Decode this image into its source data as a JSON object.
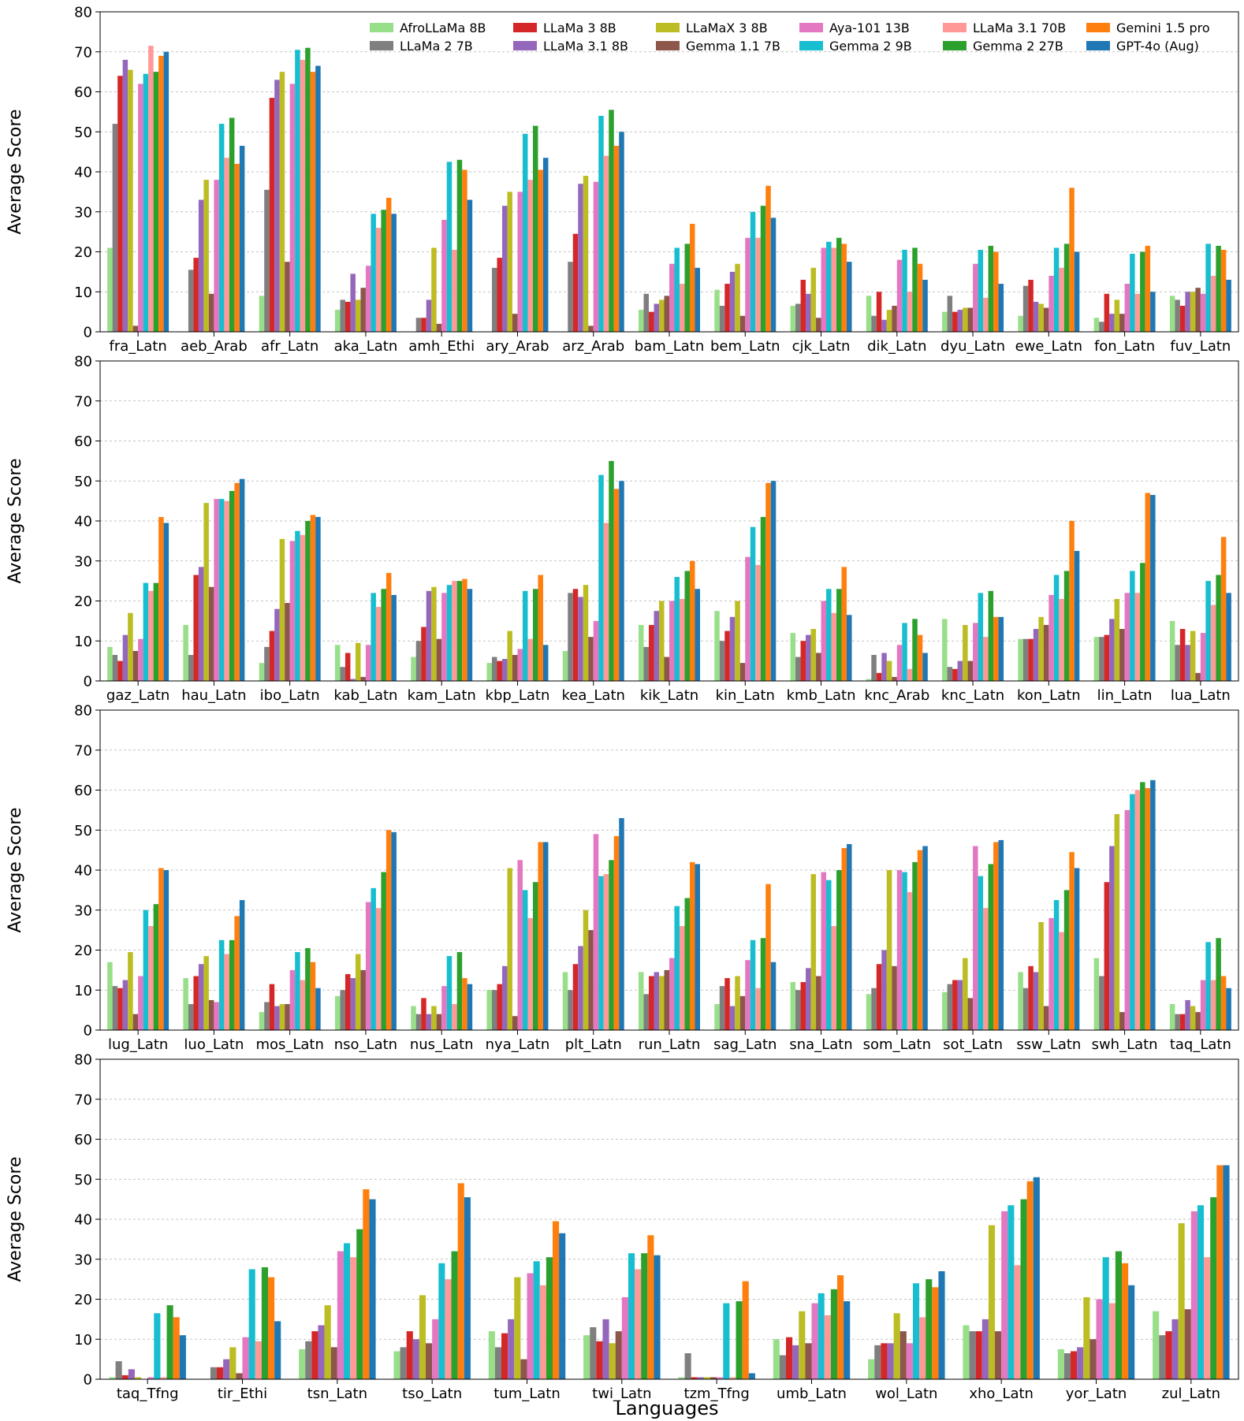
{
  "figure": {
    "xlabel": "Languages"
  },
  "colors": [
    "#98df8a",
    "#7f7f7f",
    "#d62728",
    "#9467bd",
    "#bcbd22",
    "#8c564b",
    "#e377c2",
    "#17becf",
    "#ff9896",
    "#2ca02c",
    "#ff7f0e",
    "#1f77b4"
  ],
  "chart_data": [
    {
      "type": "bar",
      "ylabel": "Average Score",
      "ylim": [
        0,
        80
      ],
      "yticks": [
        0,
        10,
        20,
        30,
        40,
        50,
        60,
        70,
        80
      ],
      "grid": "y-dashed",
      "legend": {
        "placement": "top-right",
        "entries": [
          "AfroLLaMa 8B",
          "LLaMa 2 7B",
          "LLaMa 3 8B",
          "LLaMa 3.1 8B",
          "LLaMaX 3 8B",
          "Gemma 1.1 7B",
          "Aya-101 13B",
          "Gemma 2 9B",
          "LLaMa 3.1 70B",
          "Gemma 2 27B",
          "Gemini 1.5 pro",
          "GPT-4o (Aug)"
        ]
      },
      "categories": [
        "fra_Latn",
        "aeb_Arab",
        "afr_Latn",
        "aka_Latn",
        "amh_Ethi",
        "ary_Arab",
        "arz_Arab",
        "bam_Latn",
        "bem_Latn",
        "cjk_Latn",
        "dik_Latn",
        "dyu_Latn",
        "ewe_Latn",
        "fon_Latn",
        "fuv_Latn"
      ],
      "series": [
        {
          "name": "AfroLLaMa 8B",
          "values": [
            21,
            0,
            9,
            5.5,
            0,
            0,
            0,
            5.5,
            10.5,
            6.5,
            9,
            5,
            4,
            3.5,
            9
          ]
        },
        {
          "name": "LLaMa 2 7B",
          "values": [
            52,
            15.5,
            35.5,
            8,
            3.5,
            16,
            17.5,
            9.5,
            6.5,
            7,
            4,
            9,
            11.5,
            2.5,
            8
          ]
        },
        {
          "name": "LLaMa 3 8B",
          "values": [
            64,
            18.5,
            58.5,
            7.5,
            3.5,
            18.5,
            24.5,
            5,
            12,
            13,
            10,
            5,
            13,
            9.5,
            6.5
          ]
        },
        {
          "name": "LLaMa 3.1 8B",
          "values": [
            68,
            33,
            63,
            14.5,
            8,
            31.5,
            37,
            7,
            15,
            9.5,
            3,
            5.5,
            7.5,
            4.5,
            10
          ]
        },
        {
          "name": "LLaMaX 3 8B",
          "values": [
            65.5,
            38,
            65,
            8,
            21,
            35,
            39,
            8,
            17,
            16,
            5.5,
            6,
            7,
            8,
            10
          ]
        },
        {
          "name": "Gemma 1.1 7B",
          "values": [
            1.5,
            9.5,
            17.5,
            11,
            2,
            4.5,
            1.5,
            9,
            4,
            3.5,
            6.5,
            6,
            6,
            4.5,
            11
          ]
        },
        {
          "name": "Aya-101 13B",
          "values": [
            62,
            38,
            62,
            16.5,
            28,
            35,
            37.5,
            17,
            23.5,
            21,
            18,
            17,
            14,
            12,
            9.5
          ]
        },
        {
          "name": "Gemma 2 9B",
          "values": [
            64.5,
            52,
            70.5,
            29.5,
            42.5,
            49.5,
            54,
            21,
            30,
            22.5,
            20.5,
            20.5,
            21,
            19.5,
            22
          ]
        },
        {
          "name": "LLaMa 3.1 70B",
          "values": [
            71.5,
            43.5,
            68,
            26,
            20.5,
            38,
            44,
            12,
            23.5,
            21,
            10,
            8.5,
            16,
            9.5,
            14
          ]
        },
        {
          "name": "Gemma 2 27B",
          "values": [
            65,
            53.5,
            71,
            30.5,
            43,
            51.5,
            55.5,
            22,
            31.5,
            23.5,
            21,
            21.5,
            22,
            20,
            21.5
          ]
        },
        {
          "name": "Gemini 1.5 pro",
          "values": [
            69,
            42,
            65,
            33.5,
            40.5,
            40.5,
            46.5,
            27,
            36.5,
            22,
            17,
            20,
            36,
            21.5,
            20.5
          ]
        },
        {
          "name": "GPT-4o (Aug)",
          "values": [
            70,
            46.5,
            66.5,
            29.5,
            33,
            43.5,
            50,
            16,
            28.5,
            17.5,
            13,
            12,
            20,
            10,
            13
          ]
        }
      ]
    },
    {
      "type": "bar",
      "ylabel": "Average Score",
      "ylim": [
        0,
        80
      ],
      "yticks": [
        0,
        10,
        20,
        30,
        40,
        50,
        60,
        70,
        80
      ],
      "grid": "y-dashed",
      "categories": [
        "gaz_Latn",
        "hau_Latn",
        "ibo_Latn",
        "kab_Latn",
        "kam_Latn",
        "kbp_Latn",
        "kea_Latn",
        "kik_Latn",
        "kin_Latn",
        "kmb_Latn",
        "knc_Arab",
        "knc_Latn",
        "kon_Latn",
        "lin_Latn",
        "lua_Latn"
      ],
      "series": [
        {
          "name": "AfroLLaMa 8B",
          "values": [
            8.5,
            14,
            4.5,
            9,
            6,
            4.5,
            7.5,
            14,
            17.5,
            12,
            0.5,
            15.5,
            10.5,
            11,
            15
          ]
        },
        {
          "name": "LLaMa 2 7B",
          "values": [
            6.5,
            6.5,
            8.5,
            3.5,
            10,
            6,
            22,
            8.5,
            10,
            6,
            6.5,
            3.5,
            10.5,
            11,
            9
          ]
        },
        {
          "name": "LLaMa 3 8B",
          "values": [
            5,
            26.5,
            12.5,
            7,
            13.5,
            5,
            23,
            14,
            12.5,
            10,
            2,
            3,
            10.5,
            11.5,
            13
          ]
        },
        {
          "name": "LLaMa 3.1 8B",
          "values": [
            11.5,
            28.5,
            18,
            0.5,
            22.5,
            5.5,
            21,
            17.5,
            16,
            11.5,
            7,
            5,
            13,
            15.5,
            9
          ]
        },
        {
          "name": "LLaMaX 3 8B",
          "values": [
            17,
            44.5,
            35.5,
            9.5,
            23.5,
            12.5,
            24,
            20,
            20,
            13,
            5,
            14,
            16,
            20.5,
            12.5
          ]
        },
        {
          "name": "Gemma 1.1 7B",
          "values": [
            7.5,
            23.5,
            19.5,
            1,
            10.5,
            6.5,
            11,
            6,
            4.5,
            7,
            1,
            5,
            14,
            13,
            2
          ]
        },
        {
          "name": "Aya-101 13B",
          "values": [
            10.5,
            45.5,
            35,
            9,
            22,
            8,
            15,
            20,
            31,
            20,
            9,
            14.5,
            21.5,
            22,
            12
          ]
        },
        {
          "name": "Gemma 2 9B",
          "values": [
            24.5,
            45.5,
            37.5,
            22,
            24,
            22.5,
            51.5,
            26,
            38.5,
            23,
            14.5,
            22,
            26.5,
            27.5,
            25
          ]
        },
        {
          "name": "LLaMa 3.1 70B",
          "values": [
            22.5,
            45,
            36.5,
            18.5,
            25,
            10.5,
            39.5,
            20.5,
            29,
            17,
            3,
            11,
            20.5,
            22,
            19
          ]
        },
        {
          "name": "Gemma 2 27B",
          "values": [
            24.5,
            47.5,
            40,
            23,
            25,
            23,
            55,
            27.5,
            41,
            23,
            15.5,
            22.5,
            27.5,
            29.5,
            26.5
          ]
        },
        {
          "name": "Gemini 1.5 pro",
          "values": [
            41,
            49.5,
            41.5,
            27,
            25.5,
            26.5,
            48,
            30,
            49.5,
            28.5,
            11.5,
            16,
            40,
            47,
            36
          ]
        },
        {
          "name": "GPT-4o (Aug)",
          "values": [
            39.5,
            50.5,
            41,
            21.5,
            23,
            9,
            50,
            23,
            50,
            16.5,
            7,
            16,
            32.5,
            46.5,
            22
          ]
        }
      ]
    },
    {
      "type": "bar",
      "ylabel": "Average Score",
      "ylim": [
        0,
        80
      ],
      "yticks": [
        0,
        10,
        20,
        30,
        40,
        50,
        60,
        70,
        80
      ],
      "grid": "y-dashed",
      "categories": [
        "lug_Latn",
        "luo_Latn",
        "mos_Latn",
        "nso_Latn",
        "nus_Latn",
        "nya_Latn",
        "plt_Latn",
        "run_Latn",
        "sag_Latn",
        "sna_Latn",
        "som_Latn",
        "sot_Latn",
        "ssw_Latn",
        "swh_Latn",
        "taq_Latn"
      ],
      "series": [
        {
          "name": "AfroLLaMa 8B",
          "values": [
            17,
            13,
            4.5,
            8.5,
            6,
            10,
            14.5,
            14.5,
            6.5,
            12,
            9,
            9.5,
            14.5,
            18,
            6.5
          ]
        },
        {
          "name": "LLaMa 2 7B",
          "values": [
            11,
            6.5,
            7,
            10,
            4,
            10,
            10,
            9,
            11,
            10,
            10.5,
            11.5,
            10.5,
            13.5,
            4
          ]
        },
        {
          "name": "LLaMa 3 8B",
          "values": [
            10.5,
            13.5,
            11.5,
            14,
            8,
            11.5,
            16.5,
            13.5,
            13,
            12,
            16.5,
            12.5,
            16,
            37,
            4
          ]
        },
        {
          "name": "LLaMa 3.1 8B",
          "values": [
            12.5,
            16.5,
            6,
            13,
            4,
            16,
            21,
            14.5,
            6,
            15.5,
            20,
            12.5,
            14.5,
            46,
            7.5
          ]
        },
        {
          "name": "LLaMaX 3 8B",
          "values": [
            19.5,
            18.5,
            6.5,
            19,
            6,
            40.5,
            30,
            13.5,
            13.5,
            39,
            40,
            18,
            27,
            54,
            6
          ]
        },
        {
          "name": "Gemma 1.1 7B",
          "values": [
            4,
            7.5,
            6.5,
            15,
            4,
            3.5,
            25,
            15,
            8.5,
            13.5,
            16,
            8,
            6,
            4.5,
            4.5
          ]
        },
        {
          "name": "Aya-101 13B",
          "values": [
            13.5,
            7,
            15,
            32,
            11,
            42.5,
            49,
            18,
            17.5,
            39.5,
            40,
            46,
            28,
            55,
            12.5
          ]
        },
        {
          "name": "Gemma 2 9B",
          "values": [
            30,
            22.5,
            19.5,
            35.5,
            18.5,
            35,
            38.5,
            31,
            22.5,
            37.5,
            39.5,
            38.5,
            32.5,
            59,
            22
          ]
        },
        {
          "name": "LLaMa 3.1 70B",
          "values": [
            26,
            19,
            12.5,
            30.5,
            6.5,
            28,
            39,
            26,
            10.5,
            26,
            34.5,
            30.5,
            24.5,
            60,
            12.5
          ]
        },
        {
          "name": "Gemma 2 27B",
          "values": [
            31.5,
            22.5,
            20.5,
            39.5,
            19.5,
            37,
            42.5,
            33,
            23,
            40,
            42,
            41.5,
            35,
            62,
            23
          ]
        },
        {
          "name": "Gemini 1.5 pro",
          "values": [
            40.5,
            28.5,
            17,
            50,
            13,
            47,
            48.5,
            42,
            36.5,
            45.5,
            45,
            47,
            44.5,
            60.5,
            13.5
          ]
        },
        {
          "name": "GPT-4o (Aug)",
          "values": [
            40,
            32.5,
            10.5,
            49.5,
            11.5,
            47,
            53,
            41.5,
            17,
            46.5,
            46,
            47.5,
            40.5,
            62.5,
            10.5
          ]
        }
      ]
    },
    {
      "type": "bar",
      "ylabel": "Average Score",
      "xlabel": "Languages",
      "ylim": [
        0,
        80
      ],
      "yticks": [
        0,
        10,
        20,
        30,
        40,
        50,
        60,
        70,
        80
      ],
      "grid": "y-dashed",
      "categories": [
        "taq_Tfng",
        "tir_Ethi",
        "tsn_Latn",
        "tso_Latn",
        "tum_Latn",
        "twi_Latn",
        "tzm_Tfng",
        "umb_Latn",
        "wol_Latn",
        "xho_Latn",
        "yor_Latn",
        "zul_Latn"
      ],
      "series": [
        {
          "name": "AfroLLaMa 8B",
          "values": [
            0.5,
            0,
            7.5,
            7,
            12,
            11,
            0.5,
            10,
            5,
            13.5,
            7.5,
            17
          ]
        },
        {
          "name": "LLaMa 2 7B",
          "values": [
            4.5,
            3,
            9.5,
            8,
            8,
            13,
            6.5,
            6,
            8.5,
            12,
            6.5,
            11
          ]
        },
        {
          "name": "LLaMa 3 8B",
          "values": [
            1,
            3,
            12,
            12,
            11.5,
            9.5,
            0.5,
            10.5,
            9,
            12,
            7,
            12
          ]
        },
        {
          "name": "LLaMa 3.1 8B",
          "values": [
            2.5,
            5,
            13.5,
            10,
            15,
            15,
            0.5,
            8.5,
            9,
            15,
            8,
            15
          ]
        },
        {
          "name": "LLaMaX 3 8B",
          "values": [
            0.5,
            8,
            18.5,
            21,
            25.5,
            9,
            0.5,
            17,
            16.5,
            38.5,
            20.5,
            39
          ]
        },
        {
          "name": "Gemma 1.1 7B",
          "values": [
            0,
            1.5,
            8,
            9,
            5,
            12,
            0.5,
            9,
            12,
            12,
            10,
            17.5
          ]
        },
        {
          "name": "Aya-101 13B",
          "values": [
            0.5,
            10.5,
            32,
            15,
            26.5,
            20.5,
            0.5,
            19,
            9,
            42,
            20,
            42
          ]
        },
        {
          "name": "Gemma 2 9B",
          "values": [
            16.5,
            27.5,
            34,
            29,
            29.5,
            31.5,
            19,
            21.5,
            24,
            43.5,
            30.5,
            43.5
          ]
        },
        {
          "name": "LLaMa 3.1 70B",
          "values": [
            0.5,
            9.5,
            30.5,
            25,
            23.5,
            27.5,
            0.5,
            16,
            15.5,
            28.5,
            19,
            30.5
          ]
        },
        {
          "name": "Gemma 2 27B",
          "values": [
            18.5,
            28,
            37.5,
            32,
            30.5,
            31.5,
            19.5,
            22.5,
            25,
            45,
            32,
            45.5
          ]
        },
        {
          "name": "Gemini 1.5 pro",
          "values": [
            15.5,
            25.5,
            47.5,
            49,
            39.5,
            36,
            24.5,
            26,
            23,
            49.5,
            29,
            53.5
          ]
        },
        {
          "name": "GPT-4o (Aug)",
          "values": [
            11,
            14.5,
            45,
            45.5,
            36.5,
            31,
            1.5,
            19.5,
            27,
            50.5,
            23.5,
            53.5
          ]
        }
      ]
    }
  ]
}
